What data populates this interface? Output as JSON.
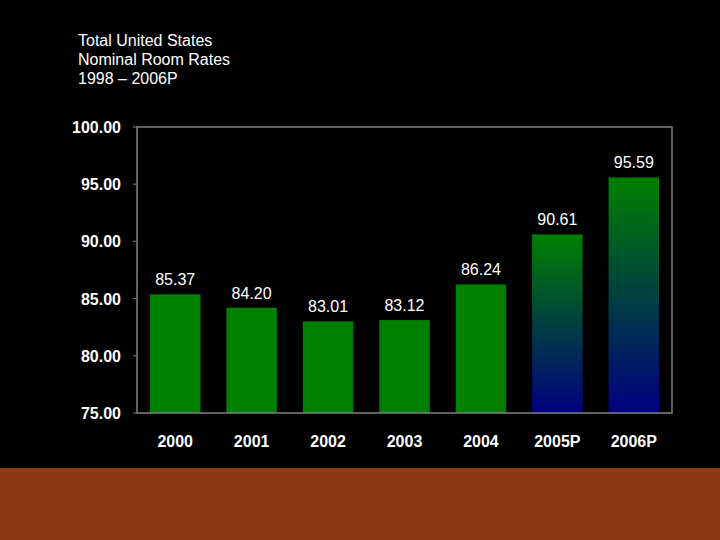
{
  "chart_data": {
    "type": "bar",
    "title": "Total United States\nNominal Room Rates\n1998 – 2006P",
    "categories": [
      "2000",
      "2001",
      "2002",
      "2003",
      "2004",
      "2005P",
      "2006P"
    ],
    "values": [
      85.37,
      84.2,
      83.01,
      83.12,
      86.24,
      90.61,
      95.59
    ],
    "value_labels": [
      "85.37",
      "84.20",
      "83.01",
      "83.12",
      "86.24",
      "90.61",
      "95.59"
    ],
    "colors": [
      "#008000",
      "#008000",
      "#008000",
      "#008000",
      "#008000",
      "#000080",
      "#000080"
    ],
    "ylim": [
      75,
      100
    ],
    "yticks": [
      {
        "value": 75,
        "label": "75.00"
      },
      {
        "value": 80,
        "label": "80.00"
      },
      {
        "value": 85,
        "label": "85.00"
      },
      {
        "value": 90,
        "label": "90.00"
      },
      {
        "value": 95,
        "label": "95.00"
      },
      {
        "value": 100,
        "label": "100.00"
      }
    ],
    "grid": false,
    "data_labels": true
  }
}
